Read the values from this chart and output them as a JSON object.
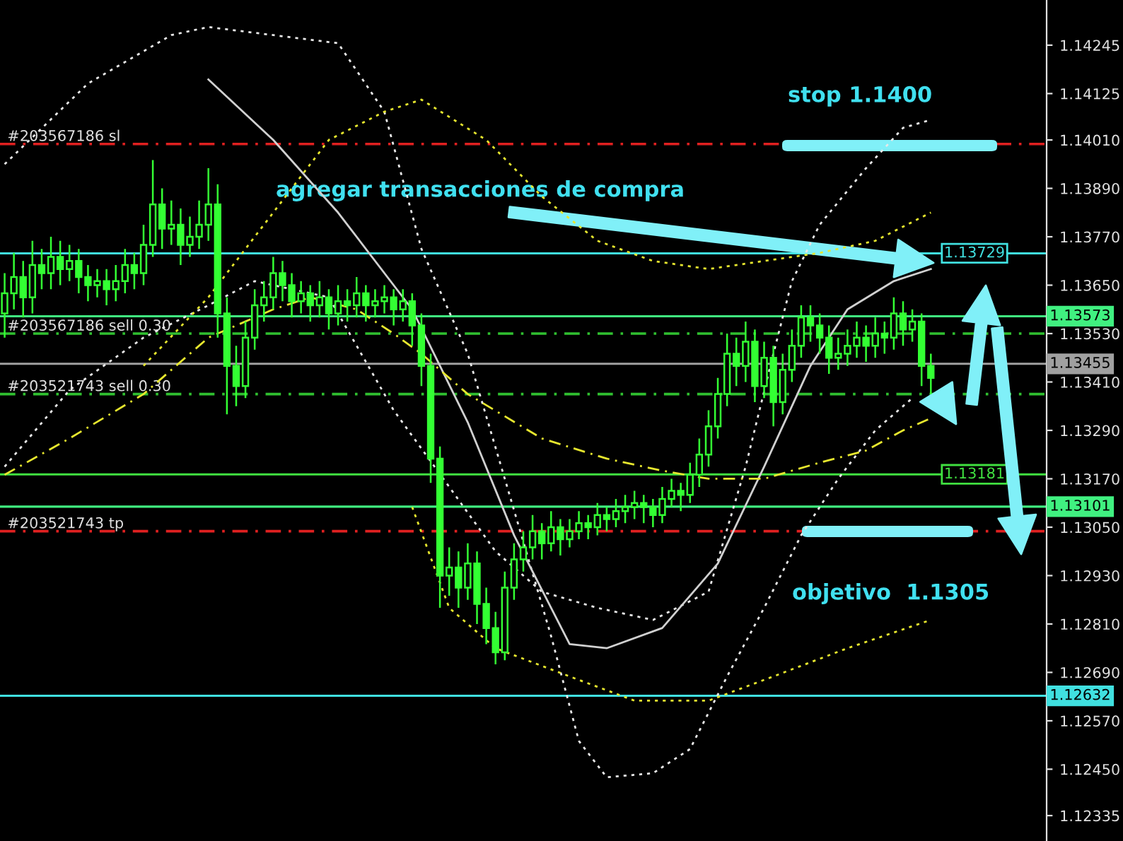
{
  "chart_data": {
    "type": "candlestick",
    "color": "#33ff33",
    "categories": [
      null,
      null,
      null,
      null,
      null,
      null,
      null,
      null,
      null,
      null,
      null,
      null,
      null,
      null,
      null,
      null,
      null,
      null,
      null,
      null,
      null,
      null,
      null,
      null,
      null,
      null,
      null,
      null,
      null,
      null,
      null,
      null,
      null,
      null,
      null,
      null,
      null,
      null,
      null,
      null,
      null,
      null,
      null,
      null,
      null,
      null,
      null,
      null,
      null,
      null,
      null,
      null,
      null,
      null,
      null,
      null,
      null,
      null,
      null,
      null,
      null,
      null,
      null,
      null,
      null,
      null,
      null,
      null,
      null,
      null,
      null,
      null,
      null,
      null,
      null,
      null,
      null,
      null,
      null,
      null,
      null,
      null,
      null,
      null,
      null,
      null,
      null,
      null,
      null,
      null,
      null,
      null,
      null,
      null,
      null,
      null,
      null,
      null,
      null,
      null,
      null,
      null,
      null,
      null,
      null,
      null,
      null,
      null,
      null,
      null,
      null,
      null,
      null
    ],
    "ohlc": [
      [
        1.1358,
        1.1368,
        1.1352,
        1.1363
      ],
      [
        1.1363,
        1.1373,
        1.1359,
        1.1367
      ],
      [
        1.1367,
        1.1371,
        1.1357,
        1.1362
      ],
      [
        1.1362,
        1.1376,
        1.1358,
        1.137
      ],
      [
        1.137,
        1.1374,
        1.1364,
        1.1368
      ],
      [
        1.1368,
        1.1377,
        1.1364,
        1.1372
      ],
      [
        1.1372,
        1.1376,
        1.1365,
        1.1369
      ],
      [
        1.1369,
        1.1375,
        1.1366,
        1.1371
      ],
      [
        1.1371,
        1.1374,
        1.1363,
        1.1367
      ],
      [
        1.1367,
        1.137,
        1.1361,
        1.1365
      ],
      [
        1.1365,
        1.1369,
        1.1362,
        1.1366
      ],
      [
        1.1366,
        1.1369,
        1.136,
        1.1364
      ],
      [
        1.1364,
        1.137,
        1.1361,
        1.1366
      ],
      [
        1.1366,
        1.1374,
        1.1363,
        1.137
      ],
      [
        1.137,
        1.1373,
        1.1364,
        1.1368
      ],
      [
        1.1368,
        1.138,
        1.1365,
        1.1375
      ],
      [
        1.1375,
        1.1396,
        1.1372,
        1.1385
      ],
      [
        1.1385,
        1.1389,
        1.1374,
        1.1379
      ],
      [
        1.1379,
        1.1386,
        1.1375,
        1.138
      ],
      [
        1.138,
        1.1384,
        1.137,
        1.1375
      ],
      [
        1.1375,
        1.1382,
        1.1372,
        1.1377
      ],
      [
        1.1377,
        1.1386,
        1.1374,
        1.138
      ],
      [
        1.138,
        1.1394,
        1.1376,
        1.1385
      ],
      [
        1.1385,
        1.139,
        1.1352,
        1.1358
      ],
      [
        1.1358,
        1.1362,
        1.1333,
        1.1345
      ],
      [
        1.1345,
        1.135,
        1.1335,
        1.134
      ],
      [
        1.134,
        1.1356,
        1.1337,
        1.1352
      ],
      [
        1.1352,
        1.1364,
        1.1349,
        1.136
      ],
      [
        1.136,
        1.1366,
        1.1356,
        1.1362
      ],
      [
        1.1362,
        1.1372,
        1.1359,
        1.1368
      ],
      [
        1.1368,
        1.1371,
        1.1361,
        1.1365
      ],
      [
        1.1365,
        1.1368,
        1.1357,
        1.1361
      ],
      [
        1.1361,
        1.1366,
        1.1358,
        1.1363
      ],
      [
        1.1363,
        1.1365,
        1.1356,
        1.136
      ],
      [
        1.136,
        1.1366,
        1.1357,
        1.1362
      ],
      [
        1.1362,
        1.1364,
        1.1354,
        1.1358
      ],
      [
        1.1358,
        1.1365,
        1.1355,
        1.1361
      ],
      [
        1.1361,
        1.1364,
        1.1356,
        1.136
      ],
      [
        1.136,
        1.1367,
        1.1357,
        1.1363
      ],
      [
        1.1363,
        1.1365,
        1.1356,
        1.136
      ],
      [
        1.136,
        1.1364,
        1.1357,
        1.1361
      ],
      [
        1.1361,
        1.1365,
        1.1358,
        1.1362
      ],
      [
        1.1362,
        1.1364,
        1.1355,
        1.1359
      ],
      [
        1.1359,
        1.1364,
        1.1356,
        1.1361
      ],
      [
        1.1361,
        1.1363,
        1.135,
        1.1355
      ],
      [
        1.1355,
        1.1358,
        1.134,
        1.1345
      ],
      [
        1.1345,
        1.1348,
        1.1316,
        1.1322
      ],
      [
        1.1322,
        1.1325,
        1.1285,
        1.1293
      ],
      [
        1.1293,
        1.13,
        1.1288,
        1.1295
      ],
      [
        1.1295,
        1.1299,
        1.1285,
        1.129
      ],
      [
        1.129,
        1.1301,
        1.1287,
        1.1296
      ],
      [
        1.1296,
        1.1299,
        1.1281,
        1.1286
      ],
      [
        1.1286,
        1.129,
        1.1276,
        1.128
      ],
      [
        1.128,
        1.1284,
        1.1271,
        1.1274
      ],
      [
        1.1274,
        1.1294,
        1.1272,
        1.129
      ],
      [
        1.129,
        1.1301,
        1.1287,
        1.1297
      ],
      [
        1.1297,
        1.1304,
        1.1294,
        1.13
      ],
      [
        1.13,
        1.1308,
        1.1297,
        1.1304
      ],
      [
        1.1304,
        1.1306,
        1.1297,
        1.1301
      ],
      [
        1.1301,
        1.1309,
        1.1299,
        1.1305
      ],
      [
        1.1305,
        1.1307,
        1.1298,
        1.1302
      ],
      [
        1.1302,
        1.1307,
        1.13,
        1.1304
      ],
      [
        1.1304,
        1.1309,
        1.1302,
        1.1306
      ],
      [
        1.1306,
        1.1308,
        1.1302,
        1.1305
      ],
      [
        1.1305,
        1.1311,
        1.1303,
        1.1308
      ],
      [
        1.1308,
        1.131,
        1.1304,
        1.1307
      ],
      [
        1.1307,
        1.1312,
        1.1305,
        1.1309
      ],
      [
        1.1309,
        1.1313,
        1.1306,
        1.131
      ],
      [
        1.131,
        1.1314,
        1.1307,
        1.1311
      ],
      [
        1.1311,
        1.1313,
        1.1306,
        1.131
      ],
      [
        1.131,
        1.1312,
        1.1305,
        1.1308
      ],
      [
        1.1308,
        1.1315,
        1.1306,
        1.1312
      ],
      [
        1.1312,
        1.1317,
        1.131,
        1.1314
      ],
      [
        1.1314,
        1.1316,
        1.1309,
        1.1313
      ],
      [
        1.1313,
        1.1321,
        1.1311,
        1.1318
      ],
      [
        1.1318,
        1.1327,
        1.1315,
        1.1323
      ],
      [
        1.1323,
        1.1334,
        1.132,
        1.133
      ],
      [
        1.133,
        1.1342,
        1.1327,
        1.1338
      ],
      [
        1.1338,
        1.1353,
        1.1335,
        1.1348
      ],
      [
        1.1348,
        1.1352,
        1.134,
        1.1345
      ],
      [
        1.1345,
        1.1356,
        1.1341,
        1.1351
      ],
      [
        1.1351,
        1.1354,
        1.1336,
        1.134
      ],
      [
        1.134,
        1.1351,
        1.1337,
        1.1347
      ],
      [
        1.1347,
        1.135,
        1.133,
        1.1336
      ],
      [
        1.1336,
        1.1348,
        1.1333,
        1.1344
      ],
      [
        1.1344,
        1.1354,
        1.1341,
        1.135
      ],
      [
        1.135,
        1.136,
        1.1347,
        1.1357
      ],
      [
        1.1357,
        1.136,
        1.1351,
        1.1355
      ],
      [
        1.1355,
        1.1358,
        1.1348,
        1.1352
      ],
      [
        1.1352,
        1.1355,
        1.1343,
        1.1347
      ],
      [
        1.1347,
        1.1352,
        1.1344,
        1.1348
      ],
      [
        1.1348,
        1.1354,
        1.1345,
        1.135
      ],
      [
        1.135,
        1.1356,
        1.1347,
        1.1352
      ],
      [
        1.1352,
        1.1355,
        1.1346,
        1.135
      ],
      [
        1.135,
        1.1357,
        1.1347,
        1.1353
      ],
      [
        1.1353,
        1.1356,
        1.1348,
        1.1352
      ],
      [
        1.1352,
        1.1362,
        1.1349,
        1.1358
      ],
      [
        1.1358,
        1.1361,
        1.135,
        1.1354
      ],
      [
        1.1354,
        1.1359,
        1.1351,
        1.1356
      ],
      [
        1.1356,
        1.1358,
        1.134,
        1.1345
      ],
      [
        1.1345,
        1.1348,
        1.1338,
        1.1342
      ],
      null,
      null,
      null,
      null,
      null,
      null,
      null,
      null,
      null,
      null,
      null,
      null
    ],
    "series": [
      {
        "type": "line",
        "color": "#e8e8e8",
        "line_style": "dotted",
        "values": [
          1.1395,
          null,
          null,
          null,
          null,
          null,
          null,
          null,
          null,
          1.1415,
          null,
          null,
          null,
          null,
          null,
          null,
          null,
          null,
          1.1427,
          null,
          null,
          null,
          1.1429,
          null,
          null,
          null,
          null,
          null,
          null,
          null,
          null,
          null,
          null,
          null,
          null,
          null,
          1.1425,
          null,
          null,
          null,
          null,
          1.1408,
          null,
          null,
          null,
          1.1374,
          null,
          null,
          null,
          null,
          1.1348,
          null,
          null,
          null,
          1.1317,
          null,
          null,
          null,
          null,
          1.1278,
          null,
          null,
          1.1252,
          null,
          null,
          1.1243,
          null,
          null,
          null,
          null,
          1.1244,
          null,
          null,
          null,
          1.125,
          null,
          null,
          null,
          1.1268,
          null,
          null,
          null,
          1.1285,
          null,
          null,
          null,
          1.1303,
          null,
          null,
          null,
          1.1317,
          null,
          null,
          null,
          1.1329,
          null,
          null,
          null,
          1.1337,
          null,
          null,
          null,
          null,
          null,
          null,
          null,
          null,
          null,
          null,
          null,
          null,
          null,
          null
        ]
      },
      {
        "type": "line",
        "color": "#e8e8e8",
        "line_style": "dotted",
        "values": [
          1.132,
          null,
          null,
          null,
          null,
          null,
          null,
          1.1339,
          null,
          null,
          null,
          null,
          null,
          null,
          null,
          1.1352,
          null,
          null,
          null,
          null,
          null,
          null,
          1.136,
          null,
          null,
          null,
          null,
          1.1366,
          null,
          null,
          null,
          null,
          null,
          null,
          null,
          1.1362,
          null,
          null,
          null,
          null,
          null,
          null,
          1.1334,
          null,
          null,
          null,
          null,
          null,
          1.1315,
          null,
          null,
          null,
          null,
          1.1299,
          null,
          null,
          null,
          null,
          1.1289,
          null,
          null,
          null,
          null,
          null,
          1.1285,
          null,
          null,
          null,
          null,
          null,
          1.1282,
          null,
          null,
          null,
          null,
          null,
          1.1289,
          null,
          null,
          null,
          1.132,
          null,
          null,
          1.1348,
          null,
          1.1366,
          null,
          null,
          1.138,
          null,
          null,
          null,
          null,
          1.1394,
          null,
          null,
          null,
          1.1404,
          null,
          null,
          1.1406,
          null,
          null,
          null,
          null,
          null,
          null,
          null,
          null,
          null,
          null,
          null,
          null
        ]
      },
      {
        "type": "line",
        "color": "#d0d0d0",
        "line_style": "solid",
        "values": [
          null,
          null,
          null,
          null,
          null,
          null,
          null,
          null,
          null,
          null,
          null,
          null,
          null,
          null,
          null,
          null,
          null,
          null,
          null,
          null,
          null,
          null,
          1.1416,
          null,
          null,
          null,
          null,
          null,
          null,
          1.1401,
          null,
          null,
          null,
          null,
          null,
          null,
          1.1383,
          null,
          null,
          null,
          null,
          null,
          null,
          null,
          1.1359,
          null,
          null,
          null,
          null,
          null,
          1.1331,
          null,
          null,
          null,
          null,
          1.1303,
          null,
          null,
          null,
          null,
          null,
          1.1276,
          null,
          null,
          null,
          1.1275,
          null,
          null,
          null,
          null,
          null,
          1.128,
          null,
          null,
          null,
          null,
          null,
          1.1296,
          null,
          null,
          null,
          null,
          1.132,
          null,
          null,
          null,
          null,
          1.1345,
          null,
          null,
          null,
          1.1359,
          null,
          null,
          null,
          null,
          1.1366,
          null,
          null,
          null,
          1.1369,
          null,
          null,
          null,
          null,
          null,
          null,
          null,
          null,
          null,
          null,
          null,
          null
        ]
      },
      {
        "type": "line",
        "color": "#e6e62e",
        "line_style": "dashed",
        "values": [
          1.1318,
          null,
          null,
          null,
          null,
          null,
          null,
          1.1327,
          null,
          null,
          null,
          null,
          null,
          null,
          null,
          1.1338,
          null,
          null,
          null,
          null,
          null,
          null,
          1.1352,
          null,
          null,
          null,
          null,
          null,
          null,
          1.1359,
          null,
          null,
          null,
          1.1362,
          null,
          null,
          null,
          null,
          1.1359,
          null,
          null,
          null,
          1.1353,
          null,
          null,
          1.1348,
          null,
          null,
          null,
          null,
          1.1338,
          null,
          null,
          null,
          null,
          null,
          null,
          null,
          1.1327,
          null,
          null,
          null,
          null,
          null,
          null,
          1.1322,
          null,
          null,
          null,
          null,
          null,
          1.1319,
          null,
          null,
          null,
          null,
          1.1317,
          null,
          null,
          null,
          null,
          null,
          1.1317,
          null,
          null,
          null,
          null,
          null,
          1.1321,
          null,
          null,
          null,
          null,
          1.1324,
          null,
          null,
          null,
          1.1329,
          null,
          null,
          1.1332,
          null,
          null,
          null,
          null,
          null,
          null,
          null,
          null,
          null,
          null,
          null,
          null
        ]
      },
      {
        "type": "line",
        "color": "#e6e62e",
        "line_style": "dotted",
        "values": [
          null,
          null,
          null,
          null,
          null,
          null,
          null,
          null,
          null,
          null,
          null,
          null,
          null,
          null,
          null,
          1.1345,
          null,
          null,
          null,
          null,
          null,
          null,
          1.1362,
          null,
          null,
          null,
          null,
          null,
          null,
          1.1383,
          null,
          null,
          null,
          null,
          null,
          1.1401,
          null,
          null,
          null,
          null,
          null,
          1.1408,
          null,
          null,
          null,
          1.1411,
          null,
          null,
          null,
          null,
          null,
          null,
          1.1401,
          null,
          null,
          null,
          null,
          null,
          1.1387,
          null,
          null,
          null,
          null,
          null,
          1.1376,
          null,
          null,
          null,
          null,
          null,
          1.1371,
          null,
          null,
          null,
          null,
          null,
          1.1369,
          null,
          null,
          null,
          null,
          null,
          1.1371,
          null,
          null,
          null,
          null,
          null,
          1.1373,
          null,
          null,
          null,
          null,
          null,
          1.1376,
          null,
          null,
          null,
          null,
          null,
          1.1383,
          null,
          null,
          null,
          null,
          null,
          null,
          null,
          null,
          null,
          null,
          null,
          null
        ]
      },
      {
        "type": "line",
        "color": "#e6e62e",
        "line_style": "dotted",
        "values": [
          null,
          null,
          null,
          null,
          null,
          null,
          null,
          null,
          null,
          null,
          null,
          null,
          null,
          null,
          null,
          null,
          null,
          null,
          null,
          null,
          null,
          null,
          null,
          null,
          null,
          null,
          null,
          null,
          null,
          null,
          null,
          null,
          null,
          null,
          null,
          null,
          null,
          null,
          null,
          null,
          null,
          null,
          null,
          null,
          1.131,
          null,
          null,
          null,
          1.1285,
          null,
          null,
          null,
          null,
          1.1275,
          null,
          null,
          null,
          null,
          null,
          null,
          null,
          1.1268,
          null,
          null,
          null,
          null,
          null,
          null,
          1.1262,
          null,
          null,
          null,
          null,
          null,
          null,
          null,
          1.1262,
          null,
          null,
          null,
          null,
          null,
          null,
          1.1268,
          null,
          null,
          null,
          null,
          null,
          null,
          null,
          1.1275,
          null,
          null,
          null,
          null,
          null,
          null,
          null,
          null,
          1.1282,
          null,
          null,
          null,
          null,
          null,
          null,
          null,
          null,
          null,
          null,
          null,
          null
        ]
      }
    ],
    "ylim": [
      1.12272,
      1.14357
    ],
    "yticks": [
      {
        "value": 1.12335,
        "label": "1.12335"
      },
      {
        "value": 1.1245,
        "label": "1.12450"
      },
      {
        "value": 1.1257,
        "label": "1.12570"
      },
      {
        "value": 1.1269,
        "label": "1.12690"
      },
      {
        "value": 1.1281,
        "label": "1.12810"
      },
      {
        "value": 1.1293,
        "label": "1.12930"
      },
      {
        "value": 1.1305,
        "label": "1.13050"
      },
      {
        "value": 1.1317,
        "label": "1.13170"
      },
      {
        "value": 1.1329,
        "label": "1.13290"
      },
      {
        "value": 1.1341,
        "label": "1.13410"
      },
      {
        "value": 1.1353,
        "label": "1.13530"
      },
      {
        "value": 1.1365,
        "label": "1.13650"
      },
      {
        "value": 1.1377,
        "label": "1.13770"
      },
      {
        "value": 1.1389,
        "label": "1.13890"
      },
      {
        "value": 1.1401,
        "label": "1.14010"
      },
      {
        "value": 1.14125,
        "label": "1.14125"
      },
      {
        "value": 1.14245,
        "label": "1.14245"
      }
    ],
    "tick_labels": "y",
    "ref_lines": [
      {
        "axis": "y",
        "value": 1.14,
        "label": "#203567186 sl",
        "color": "#e02020",
        "line_style": "dashed"
      },
      {
        "axis": "y",
        "value": 1.13729,
        "label": "1.13729",
        "color": "#40e0e0",
        "line_style": "solid"
      },
      {
        "axis": "y",
        "value": 1.13573,
        "label": "1.13573",
        "color": "#40f080",
        "line_style": "solid"
      },
      {
        "axis": "y",
        "value": 1.1353,
        "label": "#203567186 sell 0.30",
        "color": "#30c030",
        "line_style": "dashed"
      },
      {
        "axis": "y",
        "value": 1.13455,
        "label": "1.13455",
        "color": "#a0a0a0",
        "line_style": "solid"
      },
      {
        "axis": "y",
        "value": 1.1338,
        "label": "#203521743 sell 0.30",
        "color": "#30c030",
        "line_style": "dashed"
      },
      {
        "axis": "y",
        "value": 1.13181,
        "label": "1.13181",
        "color": "#40e040",
        "line_style": "solid"
      },
      {
        "axis": "y",
        "value": 1.13101,
        "label": "1.13101",
        "color": "#40f080",
        "line_style": "solid"
      },
      {
        "axis": "y",
        "value": 1.1304,
        "label": "#203521743 tp",
        "color": "#e02020",
        "line_style": "dashed"
      },
      {
        "axis": "y",
        "value": 1.12632,
        "label": "1.12632",
        "color": "#40e0e0",
        "line_style": "solid"
      }
    ],
    "grid": false,
    "annotations": [
      "stop 1.1400",
      "agregar transacciones de compra",
      "objetivo  1.1305"
    ]
  }
}
